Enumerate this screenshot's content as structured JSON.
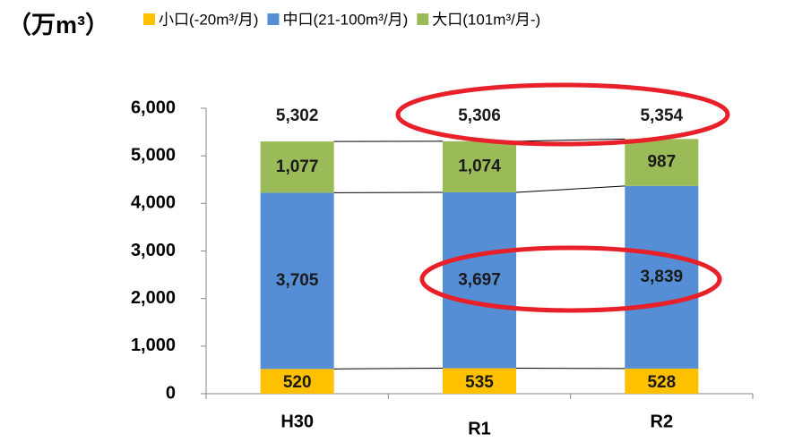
{
  "chart_data": {
    "type": "stacked_bar",
    "unit_label": "（万m³）",
    "categories": [
      "H30",
      "R1",
      "R2"
    ],
    "series": [
      {
        "name": "小口(-20m³/月)",
        "color": "#ffc000",
        "values": [
          520,
          535,
          528
        ]
      },
      {
        "name": "中口(21-100m³/月)",
        "color": "#558ed5",
        "values": [
          3705,
          3697,
          3839
        ],
        "value_labels": [
          "3,705",
          "3,697",
          "3,839"
        ]
      },
      {
        "name": "大口(101m³/月-)",
        "color": "#9bbb59",
        "values": [
          1077,
          1074,
          987
        ],
        "value_labels": [
          "1,077",
          "1,074",
          "987"
        ]
      }
    ],
    "totals": [
      5302,
      5306,
      5354
    ],
    "total_labels": [
      "5,302",
      "5,306",
      "5,354"
    ],
    "ylim": [
      0,
      6000
    ],
    "yticks": [
      0,
      {
        "value": 1000,
        "label": "1,000"
      },
      {
        "value": 2000,
        "label": "2,000"
      },
      {
        "value": 3000,
        "label": "3,000"
      },
      {
        "value": 4000,
        "label": "4,000"
      },
      {
        "value": 5000,
        "label": "5,000"
      },
      {
        "value": 6000,
        "label": "6,000"
      }
    ],
    "grid": false,
    "legend": "top"
  }
}
